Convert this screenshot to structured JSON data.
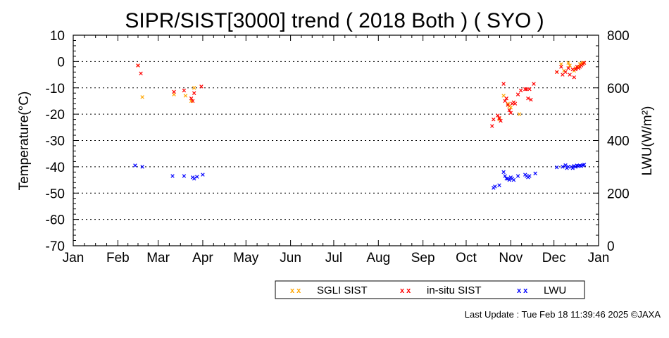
{
  "chart_data": {
    "type": "scatter",
    "title": "SIPR/SIST[3000] trend ( 2018 Both ) ( SYO )",
    "xlabel": "",
    "ylabel": "Temperature(°C)",
    "y2label": "LWU(W/m²)",
    "x_unit": "day of year 2018",
    "xlim": [
      1,
      366
    ],
    "ylim": [
      -70,
      10
    ],
    "y2lim": [
      0,
      800
    ],
    "x_tick_labels": [
      "Jan",
      "Feb",
      "Mar",
      "Apr",
      "May",
      "Jun",
      "Jul",
      "Aug",
      "Sep",
      "Oct",
      "Nov",
      "Dec",
      "Jan"
    ],
    "x_tick_positions": [
      1,
      32,
      60,
      91,
      121,
      152,
      182,
      213,
      244,
      274,
      305,
      335,
      366
    ],
    "y_tick_labels": [
      "10",
      "0",
      "-10",
      "-20",
      "-30",
      "-40",
      "-50",
      "-60",
      "-70"
    ],
    "y_tick_values": [
      10,
      0,
      -10,
      -20,
      -30,
      -40,
      -50,
      -60,
      -70
    ],
    "y2_tick_labels": [
      "800",
      "600",
      "400",
      "200",
      "0"
    ],
    "y2_tick_values": [
      800,
      600,
      400,
      200,
      0
    ],
    "grid": "horizontal dotted",
    "legend_placement": "bottom",
    "series": [
      {
        "name": "SGLI SIST",
        "marker": "x",
        "color": "#ffa500",
        "axis": "left",
        "x": [
          46,
          49,
          71,
          79,
          83,
          85,
          297,
          300,
          303,
          304,
          305,
          307,
          311,
          337,
          340,
          342,
          345,
          346,
          349,
          350,
          352,
          353,
          354,
          355
        ],
        "y": [
          -1.5,
          -13.5,
          -12.5,
          -13,
          -15,
          -10,
          -22,
          -13,
          -16,
          -17,
          -17.5,
          -15.5,
          -20,
          -4,
          -1,
          -3.5,
          -0.5,
          -1.5,
          -3.5,
          -2.5,
          -2,
          -1,
          -0.8,
          -0.5
        ]
      },
      {
        "name": "in-situ SIST",
        "marker": "x",
        "color": "#ff0000",
        "axis": "left",
        "x": [
          46,
          48,
          71,
          78,
          83,
          84,
          85,
          90,
          292,
          293,
          296,
          297,
          298,
          300,
          301,
          302,
          303,
          304,
          305,
          306,
          307,
          308,
          310,
          312,
          315,
          316,
          317,
          318,
          319,
          321,
          337,
          340,
          341,
          343,
          345,
          346,
          348,
          349,
          350,
          351,
          352,
          353,
          354,
          355,
          356
        ],
        "y": [
          -1.5,
          -4.5,
          -11.5,
          -11,
          -14,
          -15,
          -12,
          -9.5,
          -24.5,
          -22,
          -20.5,
          -21.5,
          -22.5,
          -8.5,
          -15,
          -14,
          -16.5,
          -18.5,
          -19.5,
          -16,
          -15.5,
          -16,
          -12.5,
          -11,
          -10.5,
          -10.5,
          -14,
          -10.5,
          -14.5,
          -8.5,
          -4,
          -2,
          -5,
          -4,
          -2.5,
          -5,
          -3,
          -6,
          -3,
          -2,
          -2.5,
          -2,
          -1.5,
          -1,
          -0.5
        ]
      },
      {
        "name": "LWU",
        "marker": "x",
        "color": "#0000ff",
        "axis": "right",
        "x": [
          44,
          49,
          70,
          78,
          84,
          85,
          87,
          91,
          293,
          294,
          297,
          300,
          301,
          302,
          303,
          304,
          305,
          306,
          307,
          310,
          315,
          316,
          317,
          318,
          322,
          337,
          341,
          343,
          344,
          345,
          347,
          348,
          349,
          350,
          351,
          352,
          353,
          354,
          355,
          356
        ],
        "y": [
          305,
          300,
          265,
          265,
          260,
          255,
          262,
          270,
          220,
          225,
          230,
          280,
          265,
          255,
          255,
          250,
          260,
          255,
          250,
          265,
          270,
          265,
          260,
          265,
          275,
          298,
          300,
          306,
          295,
          300,
          300,
          295,
          303,
          300,
          305,
          303,
          305,
          303,
          306,
          308
        ]
      }
    ]
  },
  "legend": {
    "items": [
      {
        "label": "SGLI SIST",
        "color": "#ffa500"
      },
      {
        "label": "in-situ SIST",
        "color": "#ff0000"
      },
      {
        "label": "LWU",
        "color": "#0000ff"
      }
    ]
  },
  "footer": {
    "text": "Last Update : Tue Feb 18 11:39:46 2025  ©JAXA"
  }
}
